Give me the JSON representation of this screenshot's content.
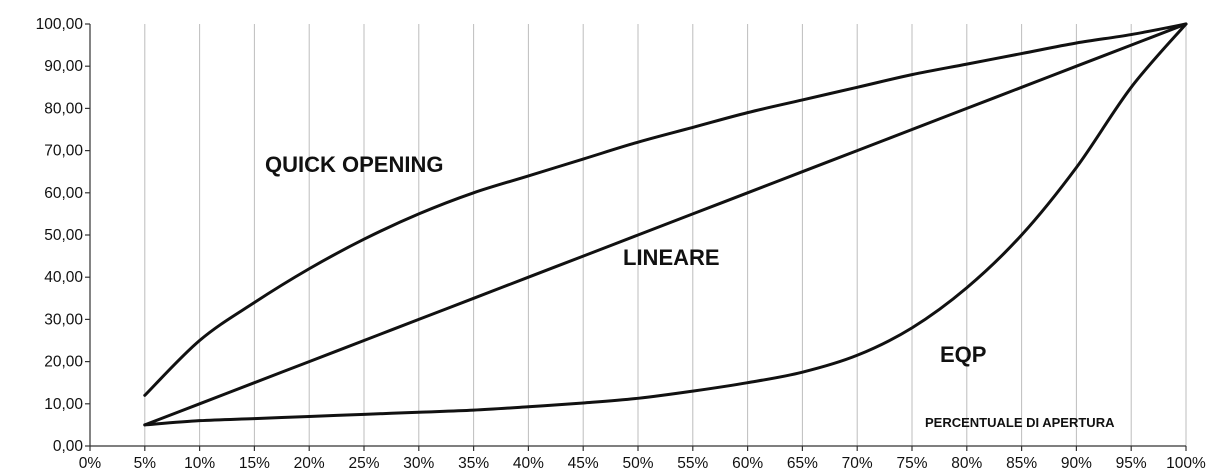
{
  "chart_data": {
    "type": "line",
    "title": "",
    "xlabel": "PERCENTUALE DI APERTURA",
    "ylabel": "",
    "x_ticks": [
      "0%",
      "5%",
      "10%",
      "15%",
      "20%",
      "25%",
      "30%",
      "35%",
      "40%",
      "45%",
      "50%",
      "55%",
      "60%",
      "65%",
      "70%",
      "75%",
      "80%",
      "85%",
      "90%",
      "95%",
      "100%"
    ],
    "y_ticks": [
      "0,00",
      "10,00",
      "20,00",
      "30,00",
      "40,00",
      "50,00",
      "60,00",
      "70,00",
      "80,00",
      "90,00",
      "100,00"
    ],
    "xlim": [
      0,
      100
    ],
    "ylim": [
      0,
      100
    ],
    "grid": "vertical",
    "series": [
      {
        "name": "QUICK OPENING",
        "x": [
          5,
          10,
          15,
          20,
          25,
          30,
          35,
          40,
          45,
          50,
          55,
          60,
          65,
          70,
          75,
          80,
          85,
          90,
          95,
          100
        ],
        "y": [
          12,
          25,
          34,
          42,
          49,
          55,
          60,
          64,
          68,
          72,
          75.5,
          79,
          82,
          85,
          88,
          90.5,
          93,
          95.5,
          97.5,
          100
        ]
      },
      {
        "name": "LINEARE",
        "x": [
          5,
          10,
          15,
          20,
          25,
          30,
          35,
          40,
          45,
          50,
          55,
          60,
          65,
          70,
          75,
          80,
          85,
          90,
          95,
          100
        ],
        "y": [
          5,
          10,
          15,
          20,
          25,
          30,
          35,
          40,
          45,
          50,
          55,
          60,
          65,
          70,
          75,
          80,
          85,
          90,
          95,
          100
        ]
      },
      {
        "name": "EQP",
        "x": [
          5,
          10,
          15,
          20,
          25,
          30,
          35,
          40,
          45,
          50,
          55,
          60,
          65,
          70,
          75,
          80,
          85,
          90,
          95,
          100
        ],
        "y": [
          5,
          6,
          6.5,
          7,
          7.5,
          8,
          8.5,
          9.3,
          10.2,
          11.3,
          13,
          15,
          17.5,
          21.5,
          28,
          37.5,
          50,
          66,
          85,
          100
        ]
      }
    ]
  }
}
